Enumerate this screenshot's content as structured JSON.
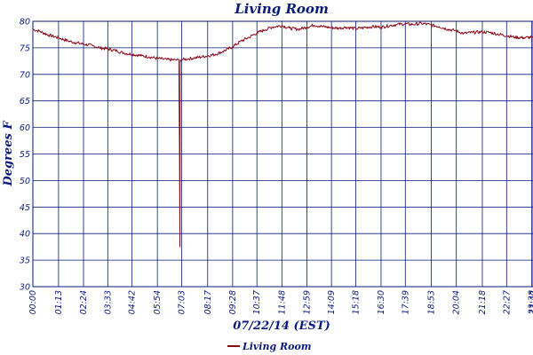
{
  "chart_data": {
    "type": "line",
    "title": "Living Room",
    "xlabel": "07/22/14 (EST)",
    "ylabel": "Degrees F",
    "ylim": [
      30,
      80
    ],
    "yticks": [
      30,
      35,
      40,
      45,
      50,
      55,
      60,
      65,
      70,
      75,
      80
    ],
    "xlim": [
      "00:00",
      "23:42"
    ],
    "xtick_labels": [
      "00:00",
      "01:13",
      "02:24",
      "03:33",
      "04:42",
      "05:54",
      "07:03",
      "08:17",
      "09:28",
      "10:37",
      "11:48",
      "12:59",
      "14:09",
      "15:18",
      "16:30",
      "17:39",
      "18:53",
      "20:04",
      "21:18",
      "22:27",
      "23:38",
      "23:42"
    ],
    "grid": true,
    "legend": "bottom-center",
    "series": [
      {
        "name": "Living Room",
        "color": "#8b0a1a",
        "points": [
          [
            "00:00",
            78.5
          ],
          [
            "00:20",
            78.1
          ],
          [
            "00:45",
            77.4
          ],
          [
            "01:13",
            76.9
          ],
          [
            "01:40",
            76.3
          ],
          [
            "02:00",
            76.0
          ],
          [
            "02:24",
            75.7
          ],
          [
            "02:50",
            75.4
          ],
          [
            "03:10",
            75.0
          ],
          [
            "03:33",
            74.8
          ],
          [
            "04:00",
            74.4
          ],
          [
            "04:20",
            74.0
          ],
          [
            "04:42",
            73.8
          ],
          [
            "05:10",
            73.5
          ],
          [
            "05:30",
            73.3
          ],
          [
            "05:54",
            73.0
          ],
          [
            "06:20",
            72.8
          ],
          [
            "06:45",
            72.7
          ],
          [
            "06:55",
            72.7
          ],
          [
            "06:57",
            55.0
          ],
          [
            "06:58",
            37.5
          ],
          [
            "06:59",
            72.7
          ],
          [
            "07:03",
            72.8
          ],
          [
            "07:20",
            72.9
          ],
          [
            "07:40",
            73.1
          ],
          [
            "08:00",
            73.3
          ],
          [
            "08:17",
            73.5
          ],
          [
            "08:40",
            73.8
          ],
          [
            "09:00",
            74.3
          ],
          [
            "09:28",
            75.2
          ],
          [
            "09:50",
            76.2
          ],
          [
            "10:15",
            77.0
          ],
          [
            "10:37",
            77.8
          ],
          [
            "11:00",
            78.4
          ],
          [
            "11:20",
            78.9
          ],
          [
            "11:48",
            79.2
          ],
          [
            "12:10",
            78.7
          ],
          [
            "12:35",
            78.5
          ],
          [
            "12:59",
            78.9
          ],
          [
            "13:20",
            79.3
          ],
          [
            "13:45",
            79.0
          ],
          [
            "14:09",
            78.8
          ],
          [
            "14:30",
            78.7
          ],
          [
            "14:50",
            78.9
          ],
          [
            "15:18",
            78.6
          ],
          [
            "15:40",
            78.8
          ],
          [
            "16:05",
            79.0
          ],
          [
            "16:30",
            78.9
          ],
          [
            "16:55",
            79.2
          ],
          [
            "17:15",
            79.4
          ],
          [
            "17:39",
            79.5
          ],
          [
            "18:00",
            79.4
          ],
          [
            "18:25",
            79.6
          ],
          [
            "18:53",
            79.3
          ],
          [
            "19:15",
            79.0
          ],
          [
            "19:40",
            78.5
          ],
          [
            "20:04",
            78.2
          ],
          [
            "20:25",
            77.7
          ],
          [
            "20:50",
            77.9
          ],
          [
            "21:18",
            78.0
          ],
          [
            "21:40",
            77.9
          ],
          [
            "22:00",
            77.6
          ],
          [
            "22:27",
            77.3
          ],
          [
            "22:50",
            77.0
          ],
          [
            "23:15",
            76.9
          ],
          [
            "23:38",
            77.0
          ],
          [
            "23:42",
            76.9
          ]
        ]
      }
    ]
  }
}
